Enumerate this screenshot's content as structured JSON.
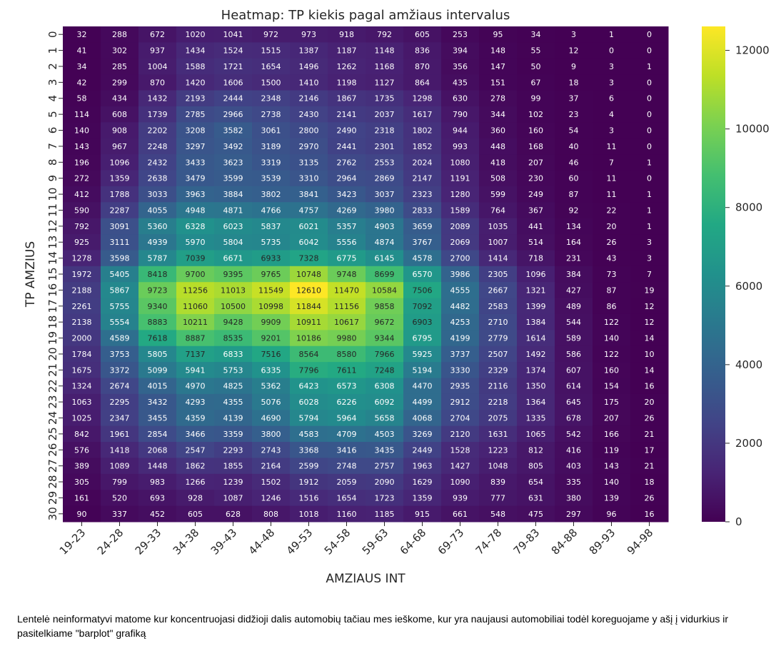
{
  "chart_data": {
    "type": "heatmap",
    "title": "Heatmap: TP kiekis pagal amžiaus intervalus",
    "xlabel": "AMZIAUS INT",
    "ylabel": "TP AMZIUS",
    "x_categories": [
      "19-23",
      "24-28",
      "29-33",
      "34-38",
      "39-43",
      "44-48",
      "49-53",
      "54-58",
      "59-63",
      "64-68",
      "69-73",
      "74-78",
      "79-83",
      "84-88",
      "89-93",
      "94-98"
    ],
    "y_categories": [
      "0",
      "1",
      "2",
      "3",
      "4",
      "5",
      "6",
      "7",
      "8",
      "9",
      "10",
      "11",
      "12",
      "13",
      "14",
      "15",
      "16",
      "17",
      "18",
      "19",
      "20",
      "21",
      "22",
      "23",
      "24",
      "25",
      "26",
      "27",
      "28",
      "29",
      "30"
    ],
    "values": [
      [
        32,
        288,
        672,
        1020,
        1041,
        972,
        973,
        918,
        792,
        605,
        253,
        95,
        34,
        3,
        1,
        0
      ],
      [
        41,
        302,
        937,
        1434,
        1524,
        1515,
        1387,
        1187,
        1148,
        836,
        394,
        148,
        55,
        12,
        0,
        0
      ],
      [
        34,
        285,
        1004,
        1588,
        1721,
        1654,
        1496,
        1262,
        1168,
        870,
        356,
        147,
        50,
        9,
        3,
        1
      ],
      [
        42,
        299,
        870,
        1420,
        1606,
        1500,
        1410,
        1198,
        1127,
        864,
        435,
        151,
        67,
        18,
        3,
        0
      ],
      [
        58,
        434,
        1432,
        2193,
        2444,
        2348,
        2146,
        1867,
        1735,
        1298,
        630,
        278,
        99,
        37,
        6,
        0
      ],
      [
        114,
        608,
        1739,
        2785,
        2966,
        2738,
        2430,
        2141,
        2037,
        1617,
        790,
        344,
        102,
        23,
        4,
        0
      ],
      [
        140,
        908,
        2202,
        3208,
        3582,
        3061,
        2800,
        2490,
        2318,
        1802,
        944,
        360,
        160,
        54,
        3,
        0
      ],
      [
        143,
        967,
        2248,
        3297,
        3492,
        3189,
        2970,
        2441,
        2301,
        1852,
        993,
        448,
        168,
        40,
        11,
        0
      ],
      [
        196,
        1096,
        2432,
        3433,
        3623,
        3319,
        3135,
        2762,
        2553,
        2024,
        1080,
        418,
        207,
        46,
        7,
        1
      ],
      [
        272,
        1359,
        2638,
        3479,
        3599,
        3539,
        3310,
        2964,
        2869,
        2147,
        1191,
        508,
        230,
        60,
        11,
        0
      ],
      [
        412,
        1788,
        3033,
        3963,
        3884,
        3802,
        3841,
        3423,
        3037,
        2323,
        1280,
        599,
        249,
        87,
        11,
        1
      ],
      [
        590,
        2287,
        4055,
        4948,
        4871,
        4766,
        4757,
        4269,
        3980,
        2833,
        1589,
        764,
        367,
        92,
        22,
        1
      ],
      [
        792,
        3091,
        5360,
        6328,
        6023,
        5837,
        6021,
        5357,
        4903,
        3659,
        2089,
        1035,
        441,
        134,
        20,
        1
      ],
      [
        925,
        3111,
        4939,
        5970,
        5804,
        5735,
        6042,
        5556,
        4874,
        3767,
        2069,
        1007,
        514,
        164,
        26,
        3
      ],
      [
        1278,
        3598,
        5787,
        7039,
        6671,
        6933,
        7328,
        6775,
        6145,
        4578,
        2700,
        1414,
        718,
        231,
        43,
        3
      ],
      [
        1972,
        5405,
        8418,
        9700,
        9395,
        9765,
        10748,
        9748,
        8699,
        6570,
        3986,
        2305,
        1096,
        384,
        73,
        7
      ],
      [
        2188,
        5867,
        9723,
        11256,
        11013,
        11549,
        12610,
        11470,
        10584,
        7506,
        4555,
        2667,
        1321,
        427,
        87,
        19
      ],
      [
        2261,
        5755,
        9340,
        11060,
        10500,
        10998,
        11844,
        11156,
        9858,
        7092,
        4482,
        2583,
        1399,
        489,
        86,
        12
      ],
      [
        2138,
        5554,
        8883,
        10211,
        9428,
        9909,
        10911,
        10617,
        9672,
        6903,
        4253,
        2710,
        1384,
        544,
        122,
        12
      ],
      [
        2000,
        4589,
        7618,
        8887,
        8535,
        9201,
        10186,
        9980,
        9344,
        6795,
        4199,
        2779,
        1614,
        589,
        140,
        14
      ],
      [
        1784,
        3753,
        5805,
        7137,
        6833,
        7516,
        8564,
        8580,
        7966,
        5925,
        3737,
        2507,
        1492,
        586,
        122,
        10
      ],
      [
        1675,
        3372,
        5099,
        5941,
        5753,
        6335,
        7796,
        7611,
        7248,
        5194,
        3330,
        2329,
        1374,
        607,
        160,
        14
      ],
      [
        1324,
        2674,
        4015,
        4970,
        4825,
        5362,
        6423,
        6573,
        6308,
        4470,
        2935,
        2116,
        1350,
        614,
        154,
        16
      ],
      [
        1063,
        2295,
        3432,
        4293,
        4355,
        5076,
        6028,
        6226,
        6092,
        4499,
        2912,
        2218,
        1364,
        645,
        175,
        20
      ],
      [
        1025,
        2347,
        3455,
        4359,
        4139,
        4690,
        5794,
        5964,
        5658,
        4068,
        2704,
        2075,
        1335,
        678,
        207,
        26
      ],
      [
        842,
        1961,
        2854,
        3466,
        3359,
        3800,
        4583,
        4709,
        4503,
        3269,
        2120,
        1631,
        1065,
        542,
        166,
        21
      ],
      [
        576,
        1418,
        2068,
        2547,
        2293,
        2743,
        3368,
        3416,
        3435,
        2449,
        1528,
        1223,
        812,
        416,
        119,
        17
      ],
      [
        389,
        1089,
        1448,
        1862,
        1855,
        2164,
        2599,
        2748,
        2757,
        1963,
        1427,
        1048,
        805,
        403,
        143,
        21
      ],
      [
        305,
        799,
        983,
        1266,
        1239,
        1502,
        1912,
        2059,
        2090,
        1629,
        1090,
        839,
        654,
        335,
        140,
        18
      ],
      [
        161,
        520,
        693,
        928,
        1087,
        1246,
        1516,
        1654,
        1723,
        1359,
        939,
        777,
        631,
        380,
        139,
        26
      ],
      [
        90,
        337,
        452,
        605,
        628,
        808,
        1018,
        1160,
        1185,
        915,
        661,
        548,
        475,
        297,
        96,
        16
      ]
    ],
    "vmin": 0,
    "vmax": 12610,
    "colormap": "viridis",
    "annotated": true,
    "colorbar_ticks": [
      0,
      2000,
      4000,
      6000,
      8000,
      10000,
      12000
    ]
  },
  "caption": "Lentelė neinformatyvi matome kur koncentruojasi didžioji dalis automobių tačiau mes ieškome, kur yra naujausi automobiliai todėl koreguojame y ašį į vidurkius ir pasitelkiame \"barplot\" grafiką"
}
